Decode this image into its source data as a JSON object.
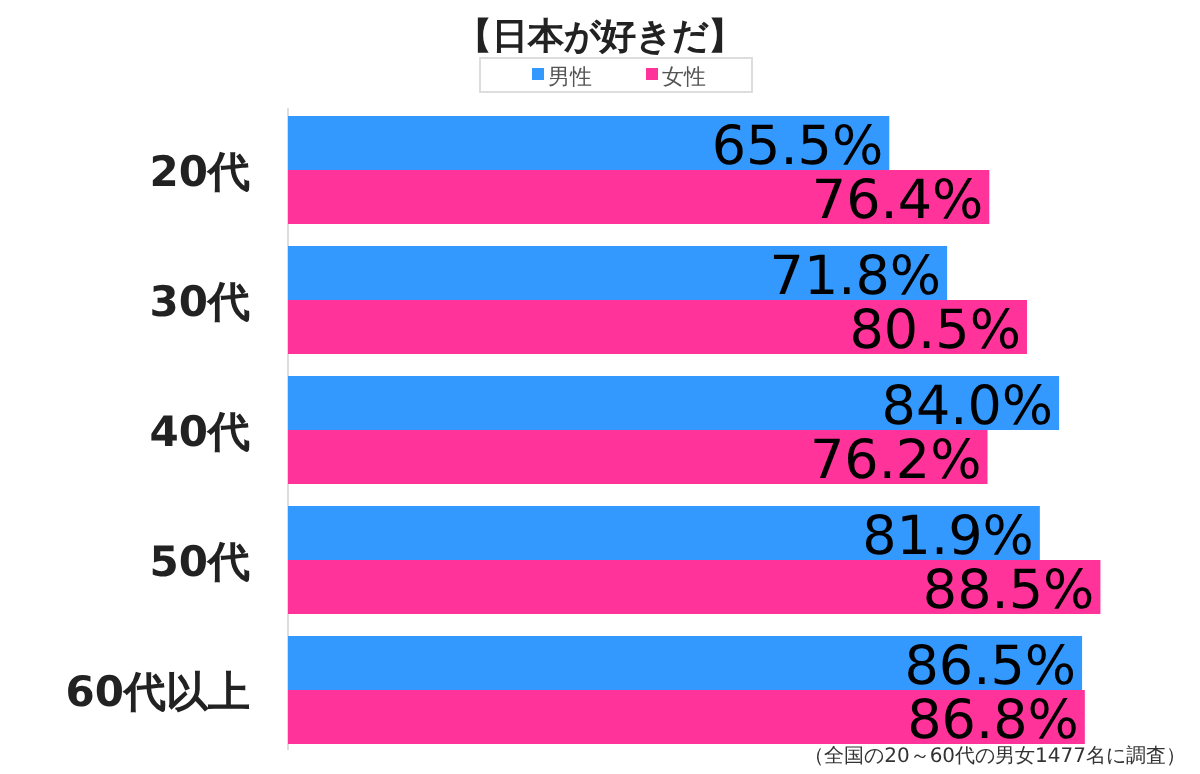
{
  "chart_data": {
    "type": "bar",
    "orientation": "horizontal",
    "title": "【日本が好きだ】",
    "categories": [
      "20代",
      "30代",
      "40代",
      "50代",
      "60代以上"
    ],
    "series": [
      {
        "name": "男性",
        "color": "#3399ff",
        "values": [
          65.5,
          71.8,
          84.0,
          81.9,
          86.5
        ],
        "value_labels": [
          "65.5%",
          "71.8%",
          "84.0%",
          "81.9%",
          "86.5%"
        ]
      },
      {
        "name": "女性",
        "color": "#ff3399",
        "values": [
          76.4,
          80.5,
          76.2,
          88.5,
          86.8
        ],
        "value_labels": [
          "76.4%",
          "80.5%",
          "76.2%",
          "88.5%",
          "86.8%"
        ]
      }
    ],
    "legend": "top",
    "annotations": [
      "（全国の20～60代の男女1477名に調査）"
    ]
  }
}
